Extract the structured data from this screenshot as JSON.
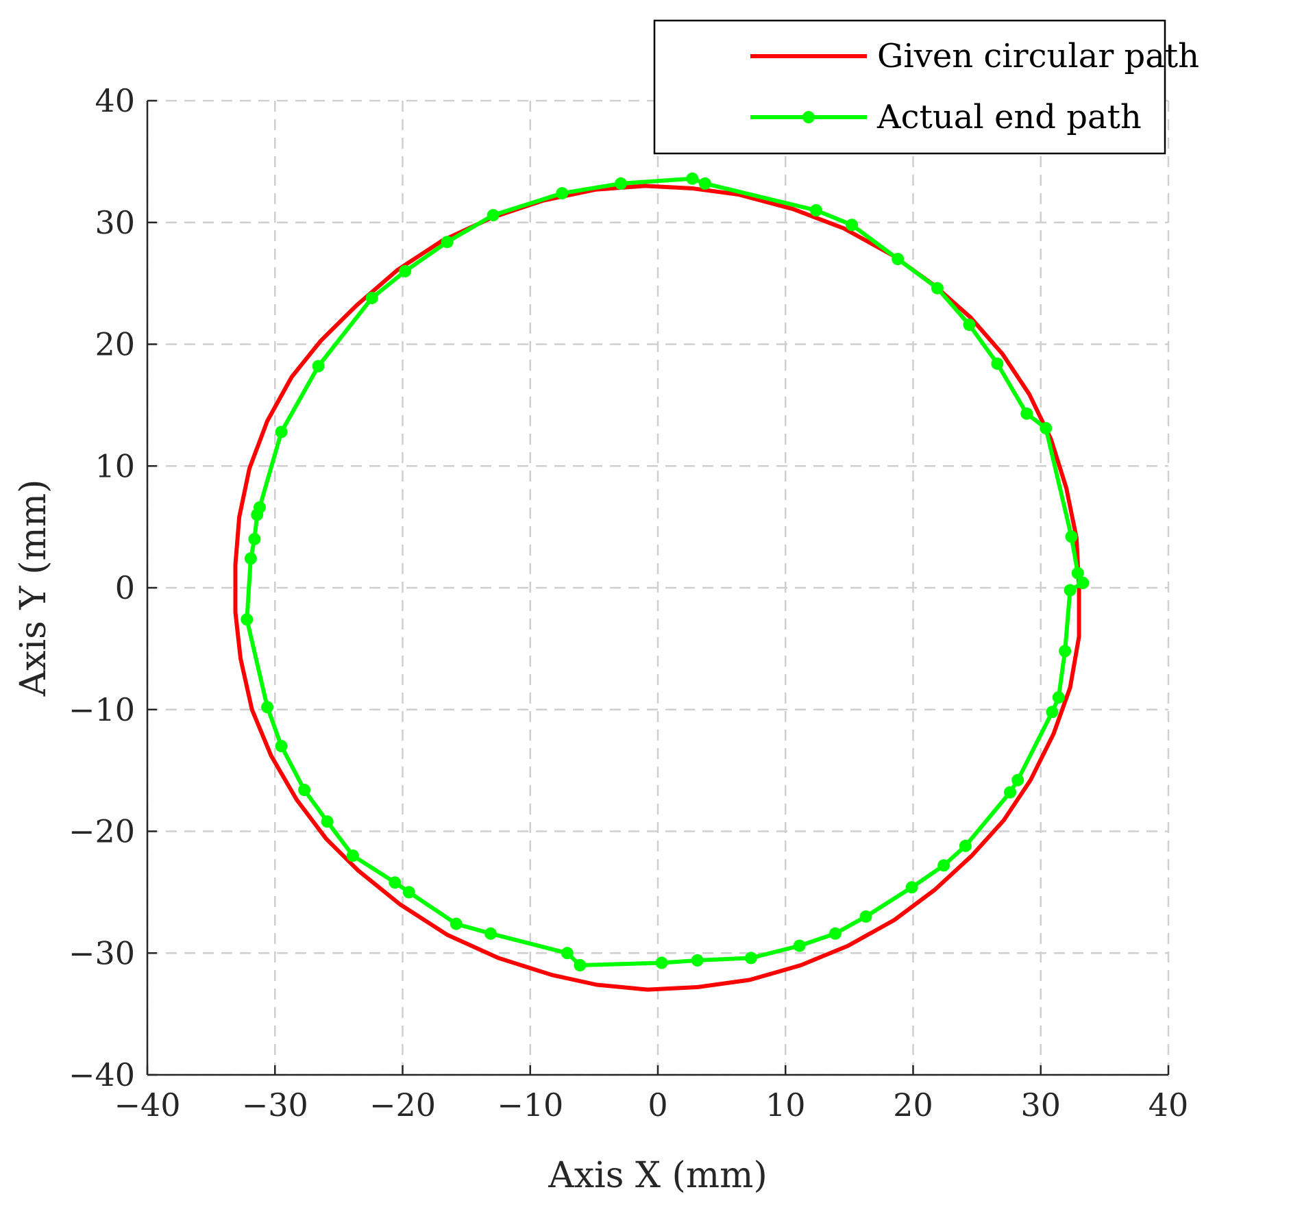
{
  "chart_data": {
    "type": "line",
    "xlabel": "Axis X (mm)",
    "ylabel": "Axis Y (mm)",
    "xlim": [
      -40,
      40
    ],
    "ylim": [
      -40,
      40
    ],
    "xticks": [
      -40,
      -30,
      -20,
      -10,
      0,
      10,
      20,
      30,
      40
    ],
    "yticks": [
      -40,
      -30,
      -20,
      -10,
      0,
      10,
      20,
      30,
      40
    ],
    "xtick_labels": [
      "−40",
      "−30",
      "−20",
      "−10",
      "0",
      "10",
      "20",
      "30",
      "40"
    ],
    "ytick_labels": [
      "−40",
      "−30",
      "−20",
      "−10",
      "0",
      "10",
      "20",
      "30",
      "40"
    ],
    "grid": true,
    "legend_position": "top-right",
    "series": [
      {
        "name": "Given circular path",
        "color": "#ff0000",
        "marker": false,
        "points": [
          [
            33.0,
            0.0
          ],
          [
            32.8,
            4.1
          ],
          [
            32.0,
            8.2
          ],
          [
            30.8,
            12.2
          ],
          [
            29.1,
            15.9
          ],
          [
            27.0,
            19.2
          ],
          [
            24.5,
            22.2
          ],
          [
            21.7,
            24.8
          ],
          [
            18.4,
            27.3
          ],
          [
            14.6,
            29.5
          ],
          [
            10.6,
            31.1
          ],
          [
            6.3,
            32.3
          ],
          [
            2.7,
            32.8
          ],
          [
            -1.0,
            33.0
          ],
          [
            -4.9,
            32.7
          ],
          [
            -9.0,
            31.8
          ],
          [
            -13.0,
            30.4
          ],
          [
            -16.9,
            28.5
          ],
          [
            -20.4,
            26.1
          ],
          [
            -23.6,
            23.2
          ],
          [
            -26.4,
            20.3
          ],
          [
            -28.7,
            17.3
          ],
          [
            -30.6,
            13.7
          ],
          [
            -32.0,
            9.8
          ],
          [
            -32.8,
            5.8
          ],
          [
            -33.1,
            1.9
          ],
          [
            -33.1,
            -2.0
          ],
          [
            -32.7,
            -5.8
          ],
          [
            -31.8,
            -10.0
          ],
          [
            -30.3,
            -13.8
          ],
          [
            -28.3,
            -17.4
          ],
          [
            -26.0,
            -20.6
          ],
          [
            -23.5,
            -23.2
          ],
          [
            -20.2,
            -26.0
          ],
          [
            -16.5,
            -28.5
          ],
          [
            -12.5,
            -30.4
          ],
          [
            -8.3,
            -31.8
          ],
          [
            -4.8,
            -32.6
          ],
          [
            -0.8,
            -33.0
          ],
          [
            3.1,
            -32.8
          ],
          [
            7.2,
            -32.2
          ],
          [
            11.2,
            -31.0
          ],
          [
            14.9,
            -29.4
          ],
          [
            18.5,
            -27.3
          ],
          [
            21.7,
            -24.8
          ],
          [
            24.6,
            -22.0
          ],
          [
            27.1,
            -19.1
          ],
          [
            29.2,
            -15.8
          ],
          [
            31.0,
            -12.0
          ],
          [
            32.3,
            -8.2
          ],
          [
            33.0,
            -4.0
          ],
          [
            33.0,
            0.0
          ]
        ]
      },
      {
        "name": "Actual end path",
        "color": "#00ff00",
        "marker": true,
        "points": [
          [
            33.3,
            0.4
          ],
          [
            32.9,
            1.2
          ],
          [
            32.4,
            4.2
          ],
          [
            30.4,
            13.1
          ],
          [
            28.9,
            14.3
          ],
          [
            26.6,
            18.4
          ],
          [
            24.4,
            21.6
          ],
          [
            21.9,
            24.6
          ],
          [
            18.8,
            27.0
          ],
          [
            15.2,
            29.8
          ],
          [
            12.4,
            31.0
          ],
          [
            3.7,
            33.2
          ],
          [
            2.7,
            33.6
          ],
          [
            -2.9,
            33.2
          ],
          [
            -7.5,
            32.4
          ],
          [
            -12.9,
            30.6
          ],
          [
            -16.5,
            28.4
          ],
          [
            -19.8,
            26.0
          ],
          [
            -22.4,
            23.8
          ],
          [
            -26.6,
            18.2
          ],
          [
            -29.5,
            12.8
          ],
          [
            -31.2,
            6.6
          ],
          [
            -31.4,
            6.0
          ],
          [
            -31.6,
            4.0
          ],
          [
            -31.9,
            2.4
          ],
          [
            -32.2,
            -2.6
          ],
          [
            -30.6,
            -9.8
          ],
          [
            -29.5,
            -13.0
          ],
          [
            -27.7,
            -16.6
          ],
          [
            -25.9,
            -19.2
          ],
          [
            -23.9,
            -22.0
          ],
          [
            -20.6,
            -24.2
          ],
          [
            -19.5,
            -25.0
          ],
          [
            -15.8,
            -27.6
          ],
          [
            -13.1,
            -28.4
          ],
          [
            -7.1,
            -30.0
          ],
          [
            -6.1,
            -31.0
          ],
          [
            0.3,
            -30.8
          ],
          [
            3.1,
            -30.6
          ],
          [
            7.3,
            -30.4
          ],
          [
            11.1,
            -29.4
          ],
          [
            13.9,
            -28.4
          ],
          [
            16.3,
            -27.0
          ],
          [
            19.9,
            -24.6
          ],
          [
            22.4,
            -22.8
          ],
          [
            24.1,
            -21.2
          ],
          [
            27.6,
            -16.8
          ],
          [
            28.2,
            -15.8
          ],
          [
            30.9,
            -10.2
          ],
          [
            31.4,
            -9.0
          ],
          [
            31.9,
            -5.2
          ],
          [
            32.3,
            -0.2
          ],
          [
            33.3,
            0.4
          ]
        ]
      }
    ]
  }
}
